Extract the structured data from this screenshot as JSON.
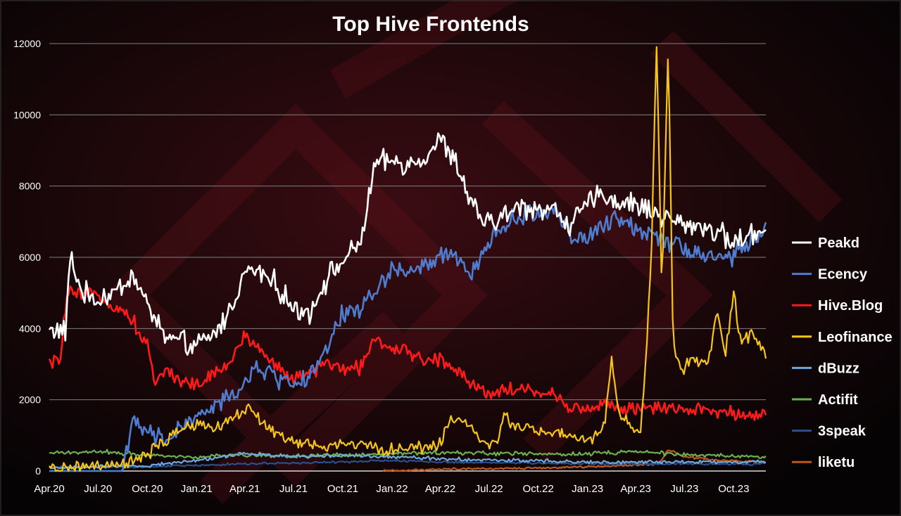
{
  "chart_data": {
    "type": "line",
    "title": "Top Hive Frontends",
    "xlabel": "",
    "ylabel": "",
    "ylim": [
      0,
      12000
    ],
    "yticks": [
      0,
      2000,
      4000,
      6000,
      8000,
      10000,
      12000
    ],
    "xticks": [
      "Apr.20",
      "Jul.20",
      "Oct.20",
      "Jan.21",
      "Apr.21",
      "Jul.21",
      "Oct.21",
      "Jan.22",
      "Apr.22",
      "Jul.22",
      "Oct.22",
      "Jan.23",
      "Apr.23",
      "Jul.23",
      "Oct.23"
    ],
    "x_range": [
      "2020-04-01",
      "2023-11-30"
    ],
    "grid": true,
    "legend_position": "right",
    "series": [
      {
        "name": "Peakd",
        "color": "#ffffff",
        "noise": 400,
        "points": [
          [
            "2020-04-01",
            4000
          ],
          [
            "2020-05-01",
            3900
          ],
          [
            "2020-05-10",
            6000
          ],
          [
            "2020-06-01",
            5000
          ],
          [
            "2020-07-01",
            4800
          ],
          [
            "2020-08-01",
            5000
          ],
          [
            "2020-09-01",
            5500
          ],
          [
            "2020-10-01",
            4700
          ],
          [
            "2020-11-01",
            3800
          ],
          [
            "2020-12-01",
            3600
          ],
          [
            "2021-01-01",
            3500
          ],
          [
            "2021-02-01",
            3800
          ],
          [
            "2021-03-01",
            4400
          ],
          [
            "2021-04-01",
            5600
          ],
          [
            "2021-05-01",
            5600
          ],
          [
            "2021-06-01",
            5200
          ],
          [
            "2021-07-01",
            4500
          ],
          [
            "2021-08-01",
            4500
          ],
          [
            "2021-09-01",
            5400
          ],
          [
            "2021-10-01",
            5900
          ],
          [
            "2021-11-01",
            6300
          ],
          [
            "2021-12-01",
            8600
          ],
          [
            "2022-01-01",
            8700
          ],
          [
            "2022-02-01",
            8600
          ],
          [
            "2022-03-01",
            8800
          ],
          [
            "2022-04-01",
            9300
          ],
          [
            "2022-05-01",
            8600
          ],
          [
            "2022-06-01",
            7400
          ],
          [
            "2022-07-01",
            6900
          ],
          [
            "2022-08-01",
            7200
          ],
          [
            "2022-09-01",
            7400
          ],
          [
            "2022-10-01",
            7400
          ],
          [
            "2022-11-01",
            7300
          ],
          [
            "2022-12-01",
            6900
          ],
          [
            "2023-01-01",
            7500
          ],
          [
            "2023-02-01",
            7800
          ],
          [
            "2023-03-01",
            7500
          ],
          [
            "2023-04-01",
            7500
          ],
          [
            "2023-05-01",
            7300
          ],
          [
            "2023-06-01",
            7100
          ],
          [
            "2023-07-01",
            6900
          ],
          [
            "2023-08-01",
            6900
          ],
          [
            "2023-09-01",
            6700
          ],
          [
            "2023-10-01",
            6400
          ],
          [
            "2023-11-30",
            6800
          ]
        ]
      },
      {
        "name": "Ecency",
        "color": "#4f7ccf",
        "noise": 350,
        "points": [
          [
            "2020-04-01",
            0
          ],
          [
            "2020-08-15",
            0
          ],
          [
            "2020-09-01",
            1300
          ],
          [
            "2020-10-01",
            1100
          ],
          [
            "2020-11-01",
            800
          ],
          [
            "2020-12-01",
            1200
          ],
          [
            "2021-01-01",
            1500
          ],
          [
            "2021-02-01",
            1800
          ],
          [
            "2021-03-01",
            2000
          ],
          [
            "2021-04-01",
            2500
          ],
          [
            "2021-05-01",
            2900
          ],
          [
            "2021-06-01",
            2600
          ],
          [
            "2021-07-01",
            2500
          ],
          [
            "2021-08-01",
            2600
          ],
          [
            "2021-09-01",
            3400
          ],
          [
            "2021-10-01",
            4400
          ],
          [
            "2021-11-01",
            4600
          ],
          [
            "2021-12-01",
            5000
          ],
          [
            "2022-01-01",
            5700
          ],
          [
            "2022-02-01",
            5600
          ],
          [
            "2022-03-01",
            5700
          ],
          [
            "2022-04-01",
            6000
          ],
          [
            "2022-05-01",
            6000
          ],
          [
            "2022-06-01",
            5500
          ],
          [
            "2022-07-01",
            6500
          ],
          [
            "2022-08-01",
            6900
          ],
          [
            "2022-09-01",
            7200
          ],
          [
            "2022-10-01",
            7200
          ],
          [
            "2022-11-01",
            7400
          ],
          [
            "2022-12-01",
            6600
          ],
          [
            "2023-01-01",
            6500
          ],
          [
            "2023-02-01",
            6900
          ],
          [
            "2023-03-01",
            7100
          ],
          [
            "2023-04-01",
            6800
          ],
          [
            "2023-05-01",
            6700
          ],
          [
            "2023-06-01",
            6500
          ],
          [
            "2023-07-01",
            6300
          ],
          [
            "2023-08-01",
            6100
          ],
          [
            "2023-09-01",
            6000
          ],
          [
            "2023-10-01",
            6000
          ],
          [
            "2023-11-30",
            6800
          ]
        ]
      },
      {
        "name": "Hive.Blog",
        "color": "#ff1a1a",
        "noise": 250,
        "points": [
          [
            "2020-04-01",
            3000
          ],
          [
            "2020-04-20",
            3100
          ],
          [
            "2020-05-05",
            5000
          ],
          [
            "2020-06-01",
            4900
          ],
          [
            "2020-07-01",
            5000
          ],
          [
            "2020-08-01",
            4600
          ],
          [
            "2020-09-01",
            4300
          ],
          [
            "2020-10-01",
            3500
          ],
          [
            "2020-10-15",
            2500
          ],
          [
            "2020-11-01",
            2800
          ],
          [
            "2020-12-01",
            2600
          ],
          [
            "2021-01-01",
            2400
          ],
          [
            "2021-02-01",
            2700
          ],
          [
            "2021-03-01",
            3000
          ],
          [
            "2021-04-01",
            3800
          ],
          [
            "2021-05-01",
            3400
          ],
          [
            "2021-06-01",
            2900
          ],
          [
            "2021-07-01",
            2600
          ],
          [
            "2021-08-01",
            2700
          ],
          [
            "2021-09-01",
            3100
          ],
          [
            "2021-10-01",
            2800
          ],
          [
            "2021-11-01",
            2900
          ],
          [
            "2021-12-01",
            3800
          ],
          [
            "2022-01-01",
            3300
          ],
          [
            "2022-02-01",
            3400
          ],
          [
            "2022-03-01",
            3100
          ],
          [
            "2022-04-01",
            3100
          ],
          [
            "2022-05-01",
            2900
          ],
          [
            "2022-06-01",
            2400
          ],
          [
            "2022-07-01",
            2200
          ],
          [
            "2022-08-01",
            2300
          ],
          [
            "2022-09-01",
            2300
          ],
          [
            "2022-10-01",
            2200
          ],
          [
            "2022-11-01",
            2100
          ],
          [
            "2022-12-01",
            1800
          ],
          [
            "2023-01-01",
            1700
          ],
          [
            "2023-02-01",
            1900
          ],
          [
            "2023-03-01",
            1800
          ],
          [
            "2023-04-01",
            1700
          ],
          [
            "2023-05-01",
            1800
          ],
          [
            "2023-06-01",
            1700
          ],
          [
            "2023-07-01",
            1700
          ],
          [
            "2023-08-01",
            1700
          ],
          [
            "2023-09-01",
            1700
          ],
          [
            "2023-10-01",
            1600
          ],
          [
            "2023-11-30",
            1600
          ]
        ]
      },
      {
        "name": "Leofinance",
        "color": "#f5c518",
        "noise": 220,
        "points": [
          [
            "2020-04-01",
            50
          ],
          [
            "2020-06-01",
            100
          ],
          [
            "2020-08-01",
            150
          ],
          [
            "2020-09-15",
            300
          ],
          [
            "2020-10-15",
            600
          ],
          [
            "2020-11-15",
            1000
          ],
          [
            "2020-12-15",
            1300
          ],
          [
            "2021-01-15",
            1200
          ],
          [
            "2021-02-15",
            1300
          ],
          [
            "2021-03-15",
            1600
          ],
          [
            "2021-04-15",
            1700
          ],
          [
            "2021-05-15",
            1200
          ],
          [
            "2021-06-15",
            900
          ],
          [
            "2021-07-15",
            800
          ],
          [
            "2021-08-15",
            700
          ],
          [
            "2021-09-15",
            700
          ],
          [
            "2021-10-15",
            800
          ],
          [
            "2021-11-15",
            700
          ],
          [
            "2021-12-15",
            600
          ],
          [
            "2022-01-15",
            600
          ],
          [
            "2022-02-15",
            650
          ],
          [
            "2022-03-15",
            700
          ],
          [
            "2022-04-01",
            800
          ],
          [
            "2022-04-20",
            1400
          ],
          [
            "2022-05-15",
            1500
          ],
          [
            "2022-06-15",
            900
          ],
          [
            "2022-07-15",
            700
          ],
          [
            "2022-08-01",
            1600
          ],
          [
            "2022-08-15",
            1300
          ],
          [
            "2022-09-15",
            1200
          ],
          [
            "2022-10-15",
            1100
          ],
          [
            "2022-11-15",
            1000
          ],
          [
            "2022-12-15",
            900
          ],
          [
            "2023-01-15",
            900
          ],
          [
            "2023-02-01",
            1200
          ],
          [
            "2023-02-15",
            3100
          ],
          [
            "2023-03-01",
            1600
          ],
          [
            "2023-03-20",
            1300
          ],
          [
            "2023-04-10",
            1100
          ],
          [
            "2023-04-20",
            3000
          ],
          [
            "2023-05-01",
            6500
          ],
          [
            "2023-05-10",
            12000
          ],
          [
            "2023-05-20",
            5000
          ],
          [
            "2023-06-01",
            12000
          ],
          [
            "2023-06-10",
            3500
          ],
          [
            "2023-06-25",
            2800
          ],
          [
            "2023-07-15",
            3200
          ],
          [
            "2023-08-15",
            3000
          ],
          [
            "2023-09-01",
            4500
          ],
          [
            "2023-09-15",
            3200
          ],
          [
            "2023-10-01",
            5000
          ],
          [
            "2023-10-15",
            3500
          ],
          [
            "2023-11-01",
            3900
          ],
          [
            "2023-11-30",
            3300
          ]
        ]
      },
      {
        "name": "dBuzz",
        "color": "#6fa8dc",
        "noise": 60,
        "points": [
          [
            "2020-04-01",
            80
          ],
          [
            "2020-10-01",
            150
          ],
          [
            "2021-01-01",
            300
          ],
          [
            "2021-04-01",
            500
          ],
          [
            "2021-07-01",
            400
          ],
          [
            "2021-10-01",
            450
          ],
          [
            "2022-01-01",
            400
          ],
          [
            "2022-04-01",
            350
          ],
          [
            "2022-07-01",
            300
          ],
          [
            "2022-10-01",
            300
          ],
          [
            "2023-01-01",
            250
          ],
          [
            "2023-04-01",
            250
          ],
          [
            "2023-07-01",
            250
          ],
          [
            "2023-11-30",
            250
          ]
        ]
      },
      {
        "name": "Actifit",
        "color": "#6ab04c",
        "noise": 70,
        "points": [
          [
            "2020-04-01",
            500
          ],
          [
            "2020-07-01",
            550
          ],
          [
            "2020-10-01",
            450
          ],
          [
            "2021-01-01",
            400
          ],
          [
            "2021-04-01",
            450
          ],
          [
            "2021-07-01",
            420
          ],
          [
            "2021-10-01",
            450
          ],
          [
            "2022-01-01",
            480
          ],
          [
            "2022-04-01",
            520
          ],
          [
            "2022-07-01",
            500
          ],
          [
            "2022-10-01",
            480
          ],
          [
            "2023-01-01",
            480
          ],
          [
            "2023-04-01",
            550
          ],
          [
            "2023-07-01",
            450
          ],
          [
            "2023-11-30",
            400
          ]
        ]
      },
      {
        "name": "3speak",
        "color": "#2a4f8a",
        "noise": 40,
        "points": [
          [
            "2020-04-01",
            100
          ],
          [
            "2020-10-01",
            120
          ],
          [
            "2021-04-01",
            200
          ],
          [
            "2021-10-01",
            250
          ],
          [
            "2022-01-01",
            300
          ],
          [
            "2022-04-01",
            250
          ],
          [
            "2022-10-01",
            220
          ],
          [
            "2023-04-01",
            200
          ],
          [
            "2023-11-30",
            200
          ]
        ]
      },
      {
        "name": "liketu",
        "color": "#c0581a",
        "noise": 40,
        "points": [
          [
            "2021-12-15",
            0
          ],
          [
            "2022-04-01",
            50
          ],
          [
            "2022-10-01",
            80
          ],
          [
            "2023-01-01",
            120
          ],
          [
            "2023-05-15",
            200
          ],
          [
            "2023-06-01",
            600
          ],
          [
            "2023-07-01",
            400
          ],
          [
            "2023-09-01",
            300
          ],
          [
            "2023-11-30",
            250
          ]
        ]
      }
    ]
  }
}
